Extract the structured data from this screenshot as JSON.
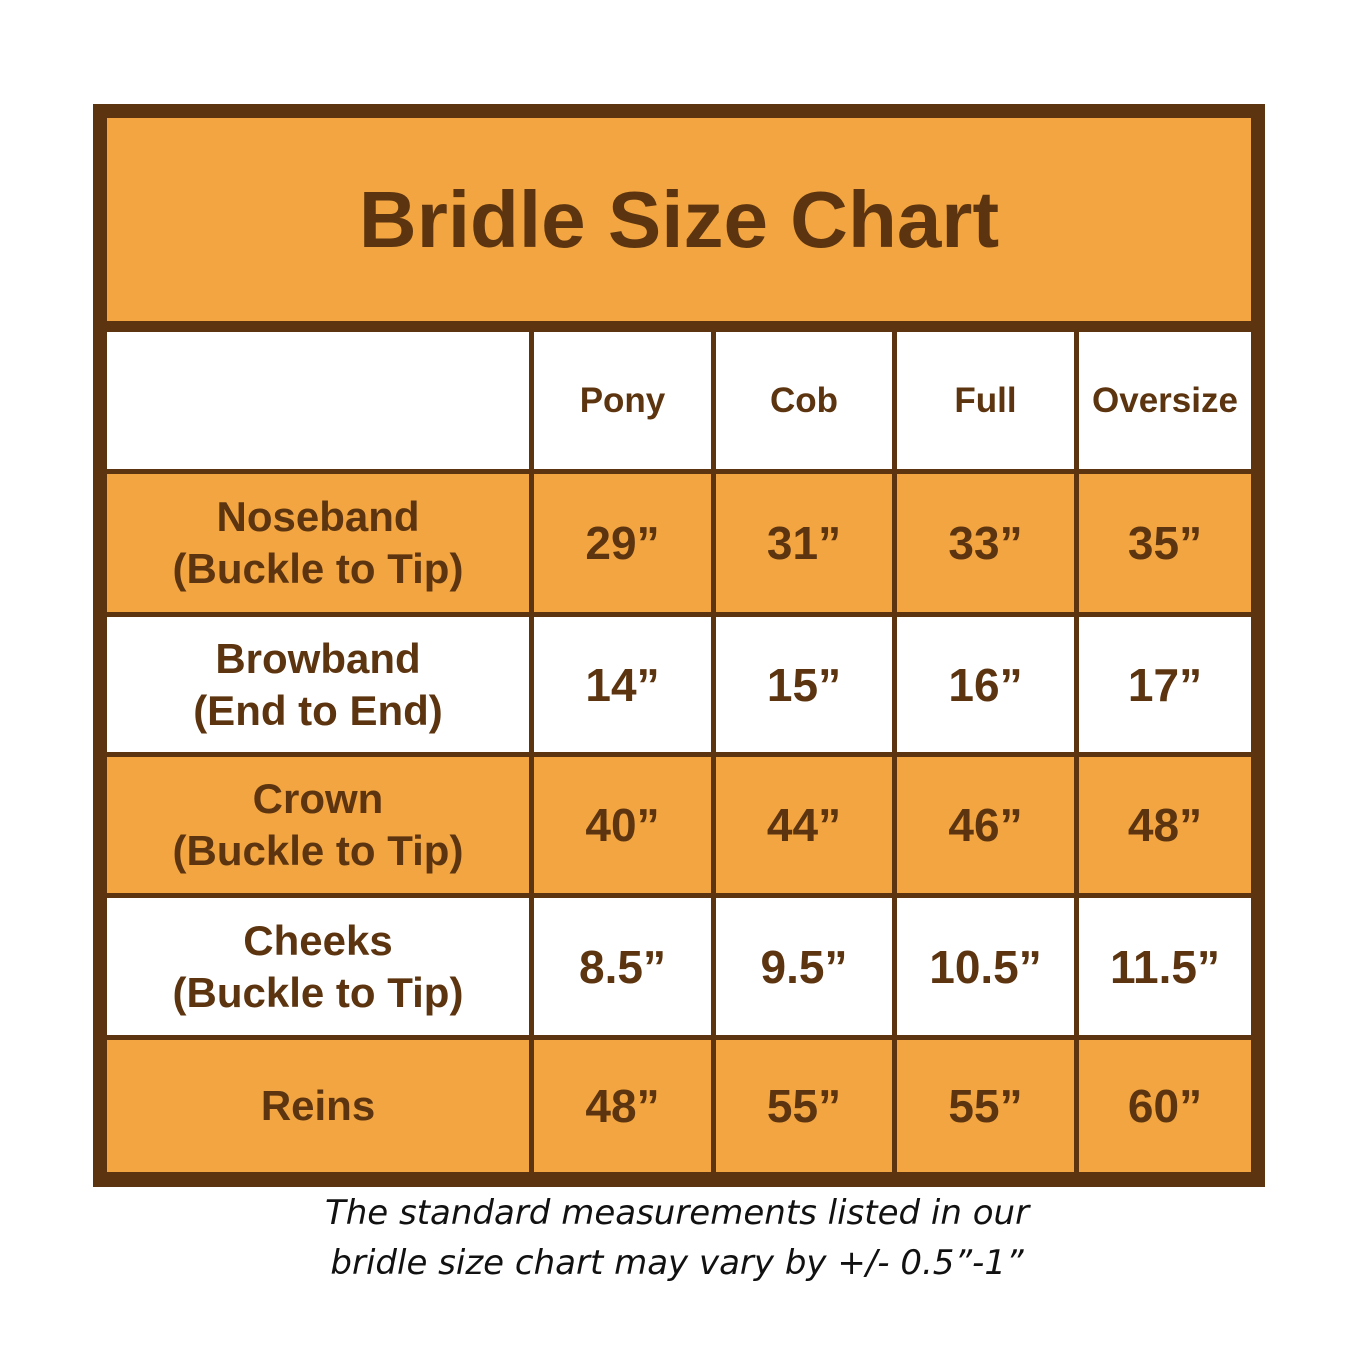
{
  "colors": {
    "border": "#5c3510",
    "accent": "#f2a541",
    "text": "#5c3510"
  },
  "title": "Bridle Size Chart",
  "chart_data": {
    "type": "table",
    "title": "Bridle Size Chart",
    "columns": [
      "Pony",
      "Cob",
      "Full",
      "Oversize"
    ],
    "rows": [
      {
        "label": "Noseband",
        "sub": "(Buckle to Tip)",
        "values": [
          "29”",
          "31”",
          "33”",
          "35”"
        ]
      },
      {
        "label": "Browband",
        "sub": "(End to End)",
        "values": [
          "14”",
          "15”",
          "16”",
          "17”"
        ]
      },
      {
        "label": "Crown",
        "sub": "(Buckle to Tip)",
        "values": [
          "40”",
          "44”",
          "46”",
          "48”"
        ]
      },
      {
        "label": "Cheeks",
        "sub": "(Buckle to Tip)",
        "values": [
          "8.5”",
          "9.5”",
          "10.5”",
          "11.5”"
        ]
      },
      {
        "label": "Reins",
        "sub": "",
        "values": [
          "48”",
          "55”",
          "55”",
          "60”"
        ]
      }
    ]
  },
  "note": {
    "line1": "The standard measurements listed in our",
    "line2": "bridle size chart may vary by +/- 0.5”-1”"
  }
}
